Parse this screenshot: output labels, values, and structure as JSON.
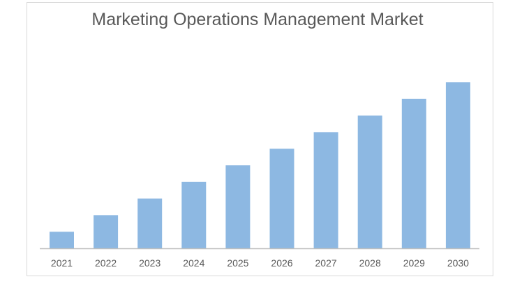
{
  "chart_data": {
    "type": "bar",
    "title": "Marketing Operations Management Market",
    "xlabel": "",
    "ylabel": "",
    "categories": [
      "2021",
      "2022",
      "2023",
      "2024",
      "2025",
      "2026",
      "2027",
      "2028",
      "2029",
      "2030"
    ],
    "values": [
      1,
      2,
      3,
      4,
      5,
      6,
      7,
      8,
      9,
      10
    ],
    "ylim": [
      0,
      10
    ],
    "grid": false,
    "legend": "none",
    "bar_color": "#8db8e2",
    "axis_color": "#bfbfbf"
  }
}
